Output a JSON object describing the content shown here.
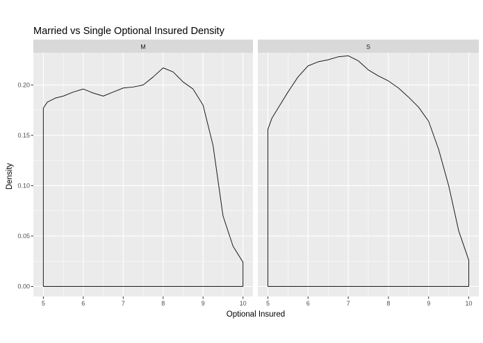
{
  "chart_data": {
    "type": "area",
    "title": "Married vs Single Optional Insured Density",
    "xlabel": "Optional Insured",
    "ylabel": "Density",
    "xlim": [
      4.75,
      10.25
    ],
    "ylim": [
      -0.01,
      0.232
    ],
    "x_ticks": [
      5,
      6,
      7,
      8,
      9,
      10
    ],
    "y_ticks": [
      0.0,
      0.05,
      0.1,
      0.15,
      0.2
    ],
    "y_tick_labels": [
      "0.00",
      "0.05",
      "0.10",
      "0.15",
      "0.20"
    ],
    "grid": true,
    "facets": [
      {
        "label": "M",
        "x": [
          5,
          5.1,
          5.3,
          5.5,
          5.75,
          6,
          6.25,
          6.5,
          6.75,
          7,
          7.25,
          7.5,
          7.75,
          8,
          8.25,
          8.5,
          8.75,
          9,
          9.25,
          9.5,
          9.75,
          10
        ],
        "y": [
          0.177,
          0.183,
          0.187,
          0.189,
          0.193,
          0.196,
          0.192,
          0.189,
          0.193,
          0.197,
          0.198,
          0.2,
          0.208,
          0.217,
          0.213,
          0.203,
          0.196,
          0.18,
          0.14,
          0.07,
          0.04,
          0.024
        ]
      },
      {
        "label": "S",
        "x": [
          5,
          5.1,
          5.3,
          5.5,
          5.75,
          6,
          6.25,
          6.5,
          6.75,
          7,
          7.25,
          7.5,
          7.75,
          8,
          8.25,
          8.5,
          8.75,
          9,
          9.25,
          9.5,
          9.75,
          10
        ],
        "y": [
          0.156,
          0.167,
          0.18,
          0.193,
          0.208,
          0.219,
          0.223,
          0.225,
          0.228,
          0.229,
          0.224,
          0.215,
          0.209,
          0.204,
          0.197,
          0.188,
          0.178,
          0.164,
          0.136,
          0.1,
          0.055,
          0.026
        ]
      }
    ]
  }
}
